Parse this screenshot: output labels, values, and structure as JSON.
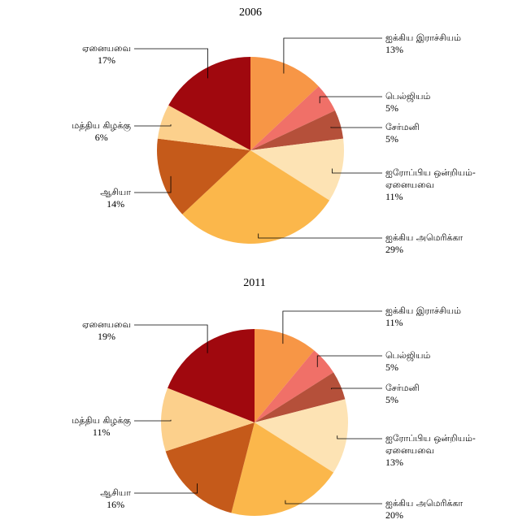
{
  "chart_data": [
    {
      "type": "pie",
      "title": "2006",
      "categories": [
        "ஐக்கிய இராச்சியம்",
        "பெல்ஜியம்",
        "சேர்மனி",
        "ஐரோப்பிய ஒன்றியம்-ஏனையவை",
        "ஐக்கிய அமெரிக்கா",
        "ஆசியா",
        "மத்திய கிழக்கு",
        "ஏனையவை"
      ],
      "values": [
        13,
        5,
        5,
        11,
        29,
        14,
        6,
        17
      ],
      "value_labels": [
        "13%",
        "5%",
        "5%",
        "11%",
        "29%",
        "14%",
        "6%",
        "17%"
      ],
      "colors": [
        "#f79646",
        "#f07068",
        "#b5503a",
        "#fde3b4",
        "#fbb74b",
        "#c55a1a",
        "#fcd08c",
        "#a0080e"
      ]
    },
    {
      "type": "pie",
      "title": "2011",
      "categories": [
        "ஐக்கிய இராச்சியம்",
        "பெல்ஜியம்",
        "சேர்மனி",
        "ஐரோப்பிய ஒன்றியம்-ஏனையவை",
        "ஐக்கிய அமெரிக்கா",
        "ஆசியா",
        "மத்திய கிழக்கு",
        "ஏனையவை"
      ],
      "values": [
        11,
        5,
        5,
        13,
        20,
        16,
        11,
        19
      ],
      "value_labels": [
        "11%",
        "5%",
        "5%",
        "13%",
        "20%",
        "16%",
        "11%",
        "19%"
      ],
      "colors": [
        "#f79646",
        "#f07068",
        "#b5503a",
        "#fde3b4",
        "#fbb74b",
        "#c55a1a",
        "#fcd08c",
        "#a0080e"
      ]
    }
  ]
}
